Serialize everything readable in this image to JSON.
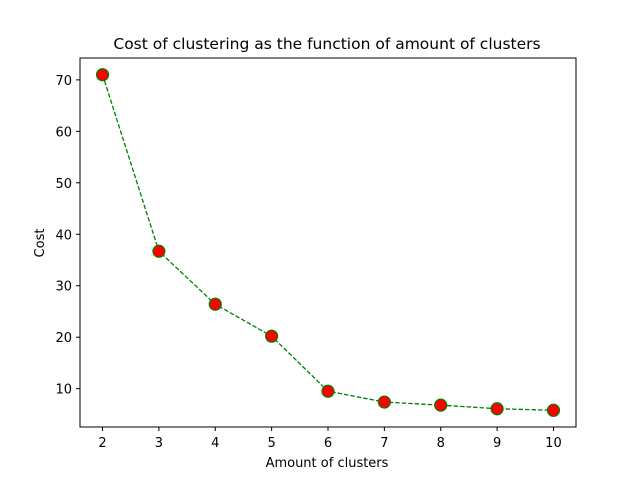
{
  "chart_data": {
    "type": "line",
    "title": "Cost of clustering as the function of amount of clusters",
    "xlabel": "Amount of clusters",
    "ylabel": "Cost",
    "x": [
      2,
      3,
      4,
      5,
      6,
      7,
      8,
      9,
      10
    ],
    "series": [
      {
        "values": [
          71.0,
          36.7,
          26.4,
          20.2,
          9.5,
          7.4,
          6.8,
          6.1,
          5.8
        ]
      }
    ],
    "xticks": [
      2,
      3,
      4,
      5,
      6,
      7,
      8,
      9,
      10
    ],
    "yticks": [
      10,
      20,
      30,
      40,
      50,
      60,
      70
    ],
    "xlim": [
      1.6,
      10.4
    ],
    "ylim": [
      2.55,
      74.25
    ],
    "line_color": "#008000",
    "line_style": "dashed",
    "marker_face_color": "#ff0000",
    "marker_edge_color": "#008000",
    "marker": "circle",
    "grid": false
  }
}
